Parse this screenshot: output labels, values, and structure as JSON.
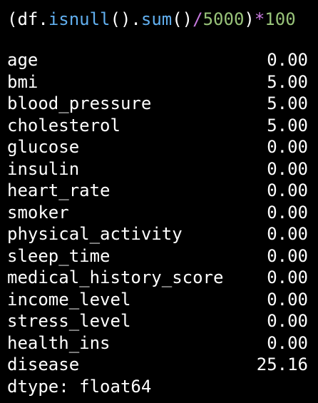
{
  "code": {
    "tokens": [
      {
        "text": "(",
        "color": "#ffffff",
        "name": "paren-open"
      },
      {
        "text": "df",
        "color": "#ffffff",
        "name": "df-identifier"
      },
      {
        "text": ".",
        "color": "#ffffff",
        "name": "dot"
      },
      {
        "text": "isnull",
        "color": "#61afef",
        "name": "isnull-call"
      },
      {
        "text": "()",
        "color": "#ffffff",
        "name": "paren-pair"
      },
      {
        "text": ".",
        "color": "#ffffff",
        "name": "dot"
      },
      {
        "text": "sum",
        "color": "#61afef",
        "name": "sum-call"
      },
      {
        "text": "()",
        "color": "#ffffff",
        "name": "paren-pair"
      },
      {
        "text": "/",
        "color": "#c678dd",
        "name": "divide-operator"
      },
      {
        "text": "5000",
        "color": "#98c379",
        "name": "number-literal"
      },
      {
        "text": ")",
        "color": "#ffffff",
        "name": "paren-close"
      },
      {
        "text": "*",
        "color": "#c678dd",
        "name": "multiply-operator"
      },
      {
        "text": "100",
        "color": "#98c379",
        "name": "number-literal"
      }
    ]
  },
  "output": {
    "rows": [
      {
        "label": "age",
        "value": "0.00"
      },
      {
        "label": "bmi",
        "value": "5.00"
      },
      {
        "label": "blood_pressure",
        "value": "5.00"
      },
      {
        "label": "cholesterol",
        "value": "5.00"
      },
      {
        "label": "glucose",
        "value": "0.00"
      },
      {
        "label": "insulin",
        "value": "0.00"
      },
      {
        "label": "heart_rate",
        "value": "0.00"
      },
      {
        "label": "smoker",
        "value": "0.00"
      },
      {
        "label": "physical_activity",
        "value": "0.00"
      },
      {
        "label": "sleep_time",
        "value": "0.00"
      },
      {
        "label": "medical_history_score",
        "value": "0.00"
      },
      {
        "label": "income_level",
        "value": "0.00"
      },
      {
        "label": "stress_level",
        "value": "0.00"
      },
      {
        "label": "health_ins",
        "value": "0.00"
      },
      {
        "label": "disease",
        "value": "25.16"
      }
    ],
    "dtype": "dtype: float64"
  },
  "theme": {
    "background": "#000000",
    "text": "#ffffff"
  }
}
